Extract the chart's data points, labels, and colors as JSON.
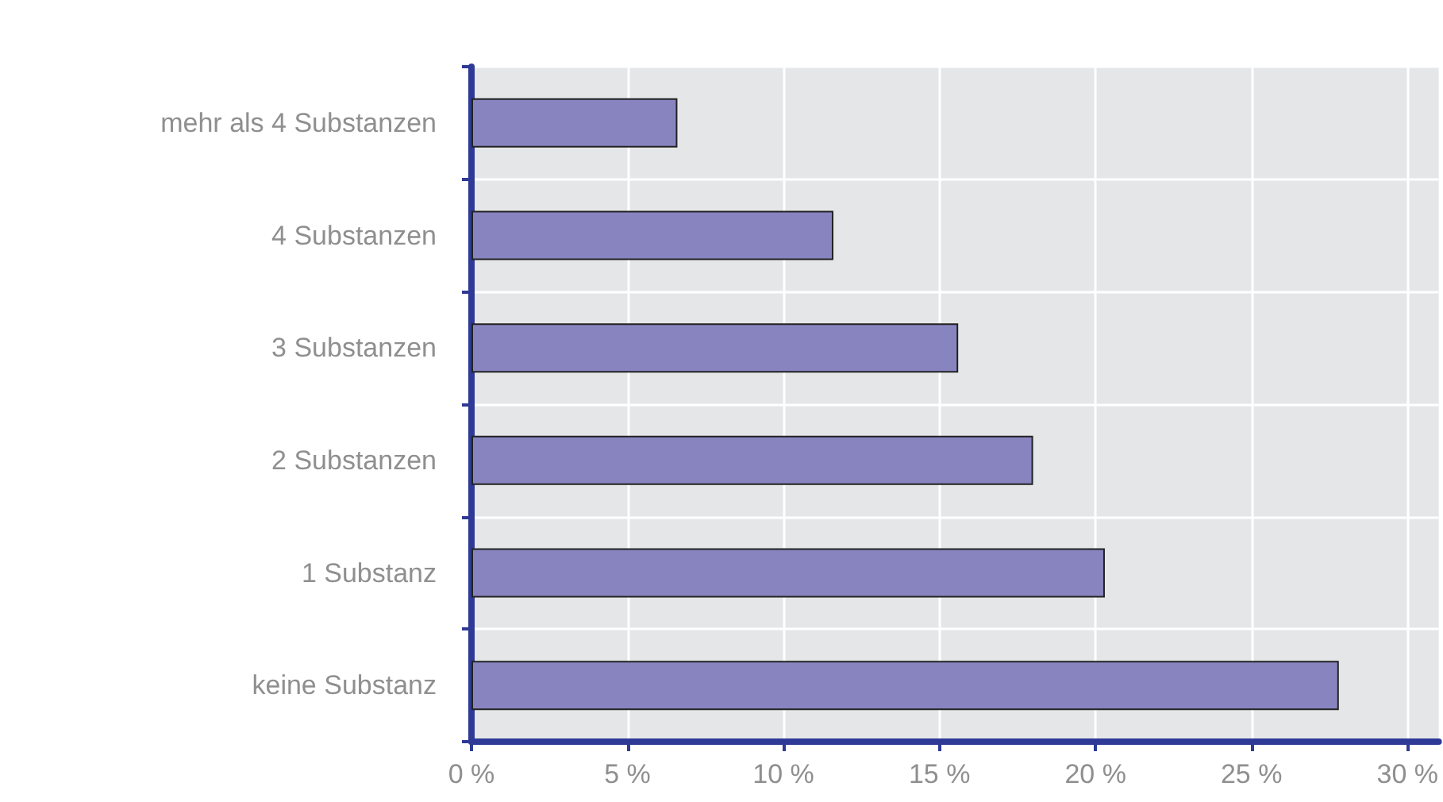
{
  "chart_data": {
    "type": "bar",
    "orientation": "horizontal",
    "categories": [
      "mehr als 4 Substanzen",
      "4 Substanzen",
      "3 Substanzen",
      "2 Substanzen",
      "1 Substanz",
      "keine Substanz"
    ],
    "values": [
      6.6,
      11.6,
      15.6,
      18.0,
      20.3,
      27.8
    ],
    "color": "#8884c0",
    "xlim": [
      0,
      31
    ],
    "xticks": [
      {
        "value": 0,
        "label": "0 %"
      },
      {
        "value": 5,
        "label": "5 %"
      },
      {
        "value": 10,
        "label": "10 %"
      },
      {
        "value": 15,
        "label": "15 %"
      },
      {
        "value": 20,
        "label": "20 %"
      },
      {
        "value": 25,
        "label": "25 %"
      },
      {
        "value": 30,
        "label": "30 %"
      }
    ],
    "grid": true
  }
}
